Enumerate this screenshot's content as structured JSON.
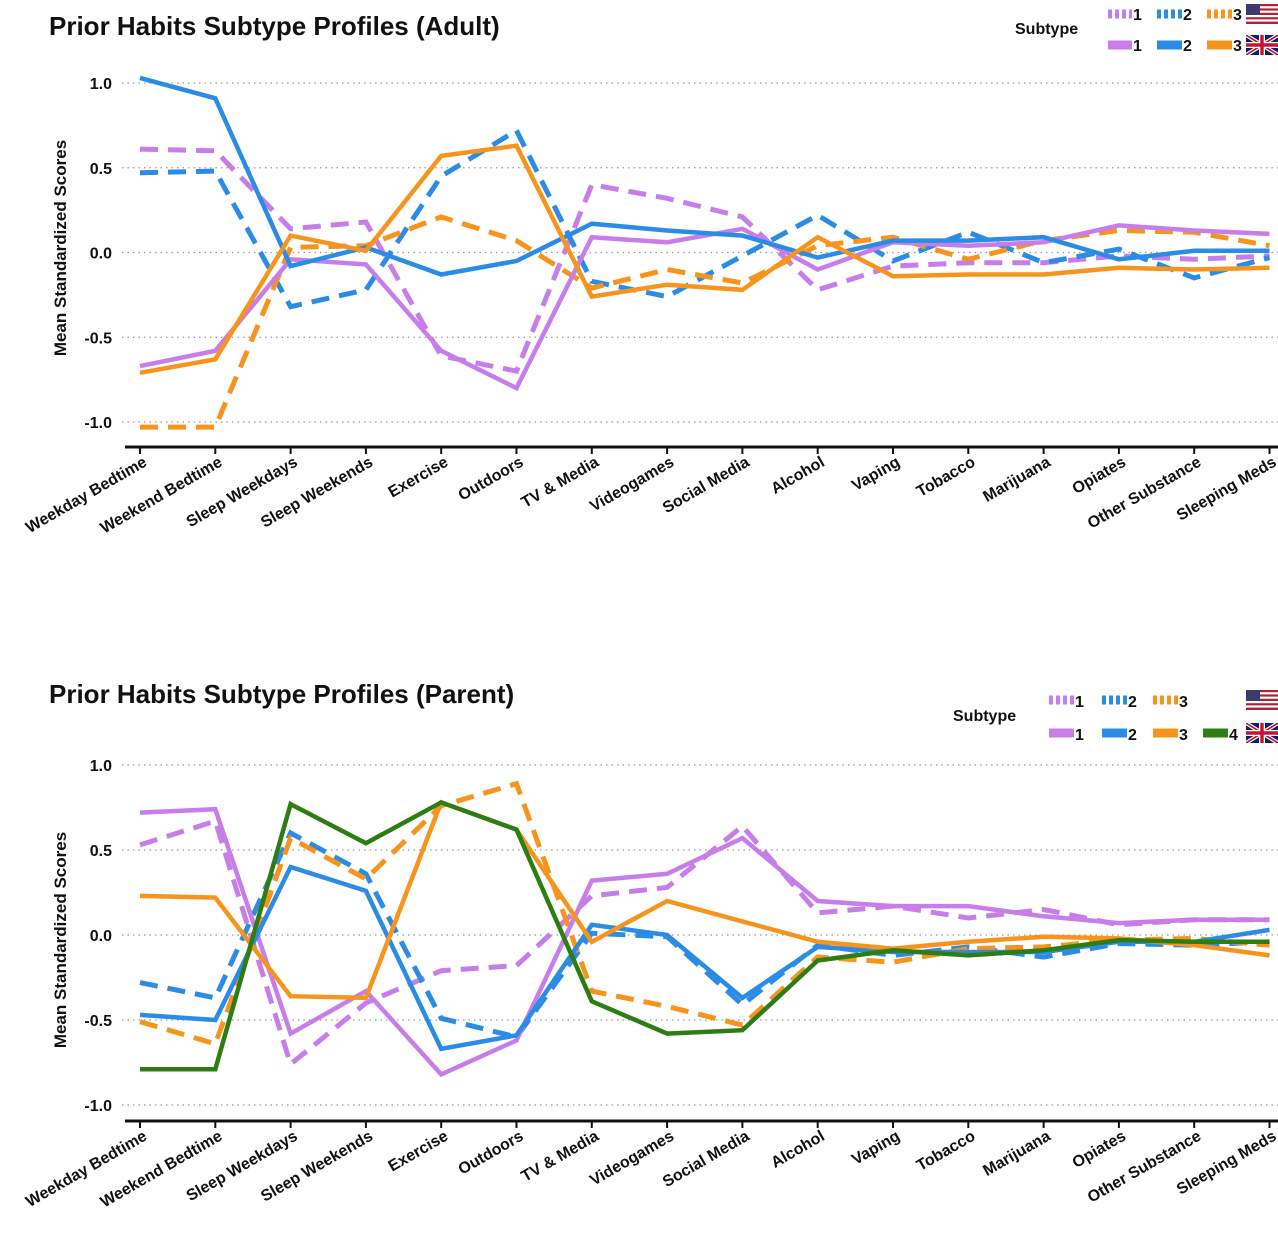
{
  "colors": {
    "subtype_1": "#c77dea",
    "subtype_2": "#2b8ce6",
    "subtype_3": "#f7941d",
    "subtype_4": "#2e7d12"
  },
  "legend": {
    "title": "Subtype",
    "us_flag_icon": "us-flag-icon",
    "uk_flag_icon": "uk-flag-icon",
    "dashed_meaning": "US",
    "solid_meaning": "UK"
  },
  "chart_data": [
    {
      "type": "line",
      "title": "Prior Habits Subtype Profiles  (Adult)",
      "ylabel": "Mean Standardized Scores",
      "xlabel": "",
      "ylim": [
        -1.1,
        1.05
      ],
      "yticks": [
        "1.0",
        "0.5",
        "0.0",
        "-0.5",
        "-1.0"
      ],
      "grid": true,
      "legend_position": "top-right",
      "categories": [
        "Weekday Bedtime",
        "Weekend Bedtime",
        "Sleep Weekdays",
        "Sleep Weekends",
        "Exercise",
        "Outdoors",
        "TV & Media",
        "Videogames",
        "Social Media",
        "Alcohol",
        "Vaping",
        "Tobacco",
        "Marijuana",
        "Opiates",
        "Other Substance",
        "Sleeping Meds"
      ],
      "series": [
        {
          "name": "1",
          "subtype": 1,
          "style": "dashed",
          "values": [
            0.61,
            0.6,
            0.14,
            0.18,
            -0.61,
            -0.7,
            0.4,
            0.32,
            0.21,
            -0.22,
            -0.08,
            -0.06,
            -0.06,
            -0.02,
            -0.04,
            -0.02
          ]
        },
        {
          "name": "2",
          "subtype": 2,
          "style": "dashed",
          "values": [
            0.47,
            0.48,
            -0.32,
            -0.22,
            0.45,
            0.72,
            -0.17,
            -0.26,
            -0.02,
            0.22,
            -0.05,
            0.12,
            -0.06,
            0.02,
            -0.15,
            -0.03
          ]
        },
        {
          "name": "3",
          "subtype": 3,
          "style": "dashed",
          "values": [
            -1.03,
            -1.03,
            0.03,
            0.04,
            0.21,
            0.07,
            -0.21,
            -0.1,
            -0.18,
            0.04,
            0.09,
            -0.04,
            0.07,
            0.13,
            0.12,
            0.04
          ]
        },
        {
          "name": "1",
          "subtype": 1,
          "style": "solid",
          "values": [
            -0.67,
            -0.58,
            -0.04,
            -0.07,
            -0.58,
            -0.8,
            0.09,
            0.06,
            0.14,
            -0.1,
            0.06,
            0.04,
            0.06,
            0.16,
            0.13,
            0.11
          ]
        },
        {
          "name": "2",
          "subtype": 2,
          "style": "solid",
          "values": [
            1.03,
            0.91,
            -0.08,
            0.03,
            -0.13,
            -0.05,
            0.17,
            0.13,
            0.1,
            -0.03,
            0.07,
            0.07,
            0.09,
            -0.04,
            0.01,
            0.01
          ]
        },
        {
          "name": "3",
          "subtype": 3,
          "style": "solid",
          "values": [
            -0.71,
            -0.63,
            0.1,
            0.01,
            0.57,
            0.63,
            -0.26,
            -0.19,
            -0.22,
            0.09,
            -0.14,
            -0.13,
            -0.13,
            -0.09,
            -0.1,
            -0.09
          ]
        }
      ]
    },
    {
      "type": "line",
      "title": "Prior Habits Subtype Profiles  (Parent)",
      "ylabel": "Mean Standardized Scores",
      "xlabel": "",
      "ylim": [
        -1.1,
        1.05
      ],
      "yticks": [
        "1.0",
        "0.5",
        "0.0",
        "-0.5",
        "-1.0"
      ],
      "grid": true,
      "legend_position": "top-right",
      "categories": [
        "Weekday Bedtime",
        "Weekend Bedtime",
        "Sleep Weekdays",
        "Sleep Weekends",
        "Exercise",
        "Outdoors",
        "TV & Media",
        "Videogames",
        "Social Media",
        "Alcohol",
        "Vaping",
        "Tobacco",
        "Marijuana",
        "Opiates",
        "Other Substance",
        "Sleeping Meds"
      ],
      "series": [
        {
          "name": "1",
          "subtype": 1,
          "style": "dashed",
          "values": [
            0.53,
            0.67,
            -0.76,
            -0.4,
            -0.21,
            -0.18,
            0.23,
            0.28,
            0.64,
            0.13,
            0.17,
            0.1,
            0.15,
            0.06,
            0.09,
            0.09
          ]
        },
        {
          "name": "2",
          "subtype": 2,
          "style": "dashed",
          "values": [
            -0.28,
            -0.37,
            0.6,
            0.36,
            -0.49,
            -0.6,
            0.01,
            -0.01,
            -0.41,
            -0.06,
            -0.12,
            -0.07,
            -0.13,
            -0.05,
            -0.06,
            -0.04
          ]
        },
        {
          "name": "3",
          "subtype": 3,
          "style": "dashed",
          "values": [
            -0.51,
            -0.64,
            0.57,
            0.33,
            0.76,
            0.89,
            -0.33,
            -0.42,
            -0.53,
            -0.13,
            -0.16,
            -0.08,
            -0.07,
            -0.03,
            -0.02,
            -0.06
          ]
        },
        {
          "name": "1",
          "subtype": 1,
          "style": "solid",
          "values": [
            0.72,
            0.74,
            -0.58,
            -0.33,
            -0.82,
            -0.62,
            0.32,
            0.36,
            0.57,
            0.2,
            0.17,
            0.17,
            0.11,
            0.07,
            0.09,
            0.09
          ]
        },
        {
          "name": "2",
          "subtype": 2,
          "style": "solid",
          "values": [
            -0.47,
            -0.5,
            0.4,
            0.26,
            -0.67,
            -0.59,
            0.06,
            0.0,
            -0.37,
            -0.07,
            -0.1,
            -0.1,
            -0.1,
            -0.04,
            -0.04,
            0.03
          ]
        },
        {
          "name": "3",
          "subtype": 3,
          "style": "solid",
          "values": [
            0.23,
            0.22,
            -0.36,
            -0.37,
            0.78,
            0.62,
            -0.04,
            0.2,
            0.08,
            -0.04,
            -0.08,
            -0.04,
            -0.01,
            -0.02,
            -0.06,
            -0.12
          ]
        },
        {
          "name": "4",
          "subtype": 4,
          "style": "solid",
          "values": [
            -0.79,
            -0.79,
            0.77,
            0.54,
            0.78,
            0.62,
            -0.39,
            -0.58,
            -0.56,
            -0.15,
            -0.09,
            -0.12,
            -0.09,
            -0.03,
            -0.04,
            -0.04
          ]
        }
      ]
    }
  ]
}
